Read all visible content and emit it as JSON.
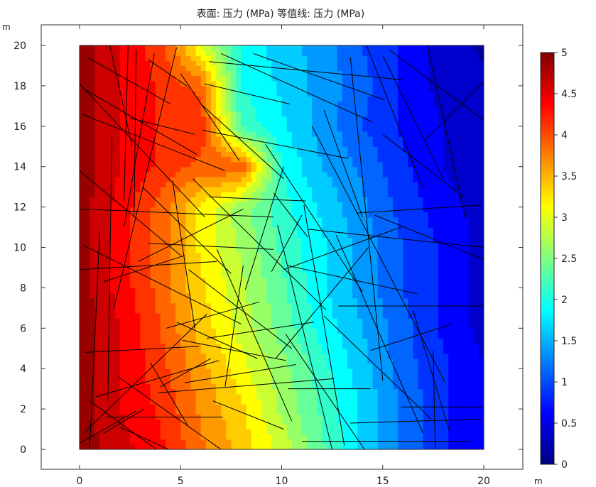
{
  "chart_data": {
    "type": "heatmap",
    "title": "表面: 压力 (MPa)  等值线: 压力 (MPa)",
    "quantity": "压力",
    "unit": "MPa",
    "xunit": "m",
    "yunit": "m",
    "xlim": [
      -2,
      22
    ],
    "ylim": [
      -1,
      21
    ],
    "domain": {
      "x": [
        0,
        20
      ],
      "y": [
        0,
        20
      ]
    },
    "xticks": [
      0,
      5,
      10,
      15,
      20
    ],
    "yticks": [
      0,
      2,
      4,
      6,
      8,
      10,
      12,
      14,
      16,
      18,
      20
    ],
    "colorbar": {
      "min": 0,
      "max": 5,
      "ticks": [
        {
          "value": 0,
          "label": "0"
        },
        {
          "value": 0.5,
          "label": "0.5"
        },
        {
          "value": 1,
          "label": "1"
        },
        {
          "value": 1.5,
          "label": "1.5"
        },
        {
          "value": 2,
          "label": "2"
        },
        {
          "value": 2.5,
          "label": "2.5"
        },
        {
          "value": 3,
          "label": "3"
        },
        {
          "value": 3.5,
          "label": "3.5"
        },
        {
          "value": 4,
          "label": "4"
        },
        {
          "value": 4.5,
          "label": "4.5"
        },
        {
          "value": 5,
          "label": "5"
        }
      ],
      "colormap": [
        "#00007f",
        "#0000ff",
        "#007fff",
        "#00ffff",
        "#7fff7f",
        "#ffff00",
        "#ff7f00",
        "#ff0000",
        "#7f0000"
      ]
    },
    "contour_levels": 20,
    "pressure_grid": {
      "x": [
        0,
        2,
        4,
        6,
        8,
        10,
        12,
        14,
        16,
        18,
        20
      ],
      "y": [
        0,
        2,
        4,
        6,
        8,
        10,
        12,
        14,
        16,
        18,
        20
      ],
      "values": [
        [
          4.9,
          4.6,
          4.3,
          3.8,
          3.4,
          2.9,
          2.3,
          1.7,
          1.2,
          0.8,
          0.5
        ],
        [
          4.9,
          4.5,
          4.2,
          3.7,
          3.3,
          2.7,
          2.2,
          1.7,
          1.2,
          0.8,
          0.5
        ],
        [
          4.9,
          4.5,
          4.1,
          3.6,
          3.1,
          2.6,
          2.1,
          1.6,
          1.1,
          0.8,
          0.5
        ],
        [
          4.9,
          4.5,
          4.0,
          3.4,
          2.9,
          2.4,
          1.9,
          1.5,
          1.1,
          0.7,
          0.4
        ],
        [
          4.9,
          4.4,
          3.9,
          3.3,
          2.8,
          2.3,
          1.8,
          1.4,
          1.0,
          0.7,
          0.4
        ],
        [
          4.9,
          4.4,
          3.9,
          3.2,
          2.7,
          2.2,
          1.8,
          1.4,
          1.0,
          0.7,
          0.4
        ],
        [
          4.9,
          4.4,
          3.9,
          3.2,
          2.6,
          2.1,
          1.7,
          1.3,
          0.9,
          0.6,
          0.4
        ],
        [
          4.9,
          4.5,
          4.2,
          3.9,
          4.0,
          2.0,
          1.5,
          1.2,
          0.8,
          0.5,
          0.3
        ],
        [
          4.9,
          4.5,
          4.2,
          4.2,
          2.2,
          1.8,
          1.4,
          1.0,
          0.7,
          0.5,
          0.3
        ],
        [
          4.9,
          4.5,
          4.2,
          3.9,
          2.0,
          1.7,
          1.4,
          1.1,
          0.7,
          0.4,
          0.3
        ],
        [
          4.9,
          4.5,
          4.1,
          3.0,
          2.0,
          1.6,
          1.4,
          1.0,
          0.7,
          0.4,
          0.2
        ]
      ]
    },
    "fractures": [
      [
        0.0,
        18.1,
        6.2,
        11.5
      ],
      [
        0.1,
        16.6,
        7.2,
        13.8
      ],
      [
        0.3,
        17.8,
        5.8,
        14.6
      ],
      [
        0.0,
        13.8,
        5.0,
        9.6
      ],
      [
        0.4,
        19.4,
        4.5,
        17.1
      ],
      [
        1.5,
        20.0,
        2.6,
        15.0
      ],
      [
        2.4,
        20.0,
        2.2,
        12.3
      ],
      [
        2.8,
        19.8,
        2.7,
        11.6
      ],
      [
        3.4,
        19.3,
        5.3,
        18.0
      ],
      [
        2.5,
        16.4,
        5.7,
        15.6
      ],
      [
        3.7,
        19.6,
        2.2,
        11.0
      ],
      [
        5.0,
        18.6,
        7.9,
        14.3
      ],
      [
        0.0,
        11.9,
        9.6,
        11.5
      ],
      [
        0.2,
        10.1,
        8.0,
        6.2
      ],
      [
        0.0,
        8.9,
        6.8,
        9.3
      ],
      [
        1.2,
        8.3,
        5.2,
        9.6
      ],
      [
        2.9,
        9.3,
        8.1,
        11.9
      ],
      [
        3.4,
        10.2,
        9.6,
        9.9
      ],
      [
        4.6,
        13.3,
        5.7,
        6.0
      ],
      [
        1.0,
        10.8,
        0.5,
        0.0
      ],
      [
        1.6,
        15.5,
        1.4,
        2.4
      ],
      [
        4.8,
        19.9,
        1.7,
        7.0
      ],
      [
        0.3,
        4.8,
        5.9,
        5.1
      ],
      [
        0.8,
        2.6,
        6.9,
        4.4
      ],
      [
        0.2,
        0.8,
        6.3,
        6.7
      ],
      [
        1.3,
        1.6,
        7.1,
        1.6
      ],
      [
        1.9,
        3.6,
        7.0,
        0.0
      ],
      [
        3.5,
        4.3,
        5.4,
        1.1
      ],
      [
        4.0,
        3.1,
        6.5,
        4.5
      ],
      [
        0.5,
        2.4,
        3.8,
        0.0
      ],
      [
        2.0,
        1.1,
        4.4,
        0.0
      ],
      [
        0.0,
        0.3,
        2.8,
        1.9
      ],
      [
        1.2,
        0.8,
        3.2,
        2.0
      ],
      [
        3.1,
        13.0,
        7.5,
        8.7
      ],
      [
        6.8,
        9.9,
        10.5,
        1.4
      ],
      [
        5.4,
        8.9,
        10.5,
        5.0
      ],
      [
        8.1,
        9.1,
        7.2,
        3.1
      ],
      [
        4.8,
        6.3,
        8.8,
        4.5
      ],
      [
        6.3,
        5.5,
        11.6,
        6.3
      ],
      [
        4.3,
        6.0,
        8.9,
        7.3
      ],
      [
        5.1,
        5.4,
        10.2,
        4.4
      ],
      [
        5.2,
        3.3,
        10.7,
        4.2
      ],
      [
        3.9,
        2.8,
        12.6,
        3.5
      ],
      [
        6.6,
        2.4,
        10.1,
        1.0
      ],
      [
        5.6,
        13.4,
        12.2,
        6.9
      ],
      [
        6.0,
        17.1,
        10.1,
        13.4
      ],
      [
        6.2,
        18.1,
        10.4,
        17.1
      ],
      [
        6.1,
        15.8,
        13.3,
        14.4
      ],
      [
        6.4,
        12.5,
        11.2,
        12.3
      ],
      [
        7.0,
        19.6,
        14.5,
        16.2
      ],
      [
        8.6,
        19.6,
        15.1,
        17.3
      ],
      [
        6.4,
        19.2,
        16.0,
        18.3
      ],
      [
        9.2,
        15.1,
        14.0,
        7.8
      ],
      [
        10.1,
        14.0,
        8.2,
        7.9
      ],
      [
        11.3,
        10.5,
        9.6,
        12.7
      ],
      [
        9.8,
        11.1,
        12.5,
        0.0
      ],
      [
        11.1,
        12.1,
        13.1,
        0.2
      ],
      [
        11.5,
        16.0,
        18.1,
        3.3
      ],
      [
        9.5,
        8.8,
        11.0,
        11.6
      ],
      [
        12.1,
        16.8,
        14.0,
        11.5
      ],
      [
        13.4,
        19.4,
        15.0,
        3.4
      ],
      [
        12.7,
        10.6,
        17.0,
        0.8
      ],
      [
        12.1,
        6.6,
        17.4,
        1.5
      ],
      [
        10.3,
        3.0,
        14.4,
        3.0
      ],
      [
        10.2,
        5.7,
        14.1,
        0.0
      ],
      [
        9.7,
        4.5,
        14.3,
        10.0
      ],
      [
        10.1,
        8.9,
        15.9,
        11.0
      ],
      [
        10.3,
        9.1,
        16.7,
        7.7
      ],
      [
        12.8,
        7.1,
        20.0,
        7.1
      ],
      [
        11.3,
        10.9,
        20.0,
        10.0
      ],
      [
        11.0,
        0.4,
        19.4,
        0.4
      ],
      [
        13.4,
        1.3,
        19.9,
        1.5
      ],
      [
        14.2,
        20.0,
        17.0,
        12.9
      ],
      [
        15.0,
        19.5,
        18.0,
        13.4
      ],
      [
        14.6,
        11.6,
        20.0,
        9.4
      ],
      [
        15.0,
        15.6,
        19.0,
        12.5
      ],
      [
        14.4,
        4.9,
        18.4,
        6.2
      ],
      [
        17.1,
        15.3,
        20.0,
        18.2
      ],
      [
        17.2,
        20.0,
        19.1,
        11.4
      ],
      [
        17.5,
        4.9,
        17.6,
        0.0
      ],
      [
        16.5,
        6.9,
        18.3,
        0.9
      ],
      [
        15.9,
        2.1,
        20.0,
        2.1
      ],
      [
        13.7,
        11.7,
        19.9,
        12.1
      ],
      [
        15.3,
        19.8,
        20.0,
        16.3
      ]
    ]
  }
}
